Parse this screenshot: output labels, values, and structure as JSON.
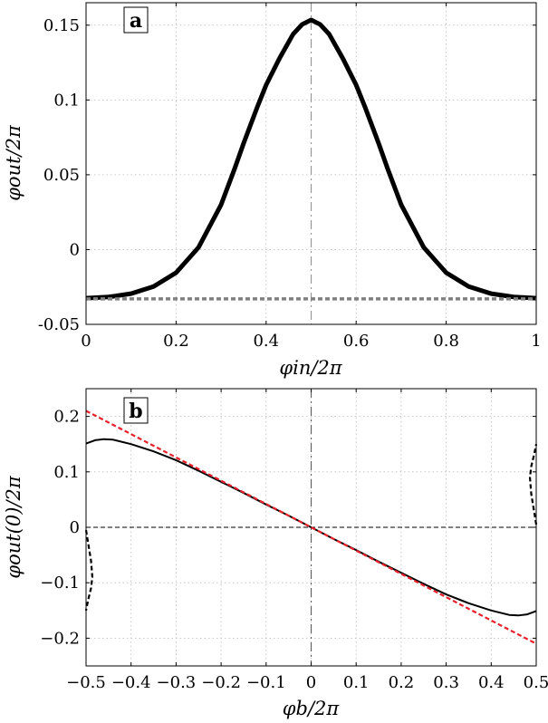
{
  "chart_data": [
    {
      "type": "line",
      "panel_label": "a",
      "xlabel": "φin/2π",
      "ylabel": "φout/2π",
      "xlim": [
        0,
        1
      ],
      "ylim": [
        -0.05,
        0.17
      ],
      "xticks": [
        0,
        0.2,
        0.4,
        0.6,
        0.8,
        1
      ],
      "xtick_labels": [
        "0",
        "0.2",
        "0.4",
        "0.6",
        "0.8",
        "1"
      ],
      "yticks": [
        -0.05,
        0,
        0.05,
        0.1,
        0.15
      ],
      "ytick_labels": [
        "-0.05",
        "0",
        "0.05",
        "0.1",
        "0.15"
      ],
      "grid": true,
      "series": [
        {
          "style": "solid-thick",
          "color": "#000000",
          "x": [
            0,
            0.05,
            0.1,
            0.15,
            0.2,
            0.25,
            0.3,
            0.33,
            0.35,
            0.38,
            0.4,
            0.43,
            0.46,
            0.48,
            0.5,
            0.52,
            0.54,
            0.57,
            0.6,
            0.62,
            0.65,
            0.67,
            0.7,
            0.75,
            0.8,
            0.85,
            0.9,
            0.95,
            1
          ],
          "y": [
            -0.0325,
            -0.0317,
            -0.0295,
            -0.0247,
            -0.0155,
            0.0015,
            0.03,
            0.054,
            0.071,
            0.095,
            0.11,
            0.128,
            0.144,
            0.1505,
            0.1535,
            0.1505,
            0.144,
            0.128,
            0.11,
            0.095,
            0.071,
            0.054,
            0.03,
            0.0015,
            -0.0155,
            -0.0247,
            -0.0295,
            -0.0317,
            -0.0325
          ]
        },
        {
          "style": "dashed-gray",
          "color": "#808080",
          "x": [
            0,
            1
          ],
          "y": [
            -0.033,
            -0.033
          ]
        }
      ],
      "reference_lines": [
        {
          "orientation": "vertical",
          "value": 0.5,
          "color": "#909090"
        }
      ]
    },
    {
      "type": "line",
      "panel_label": "b",
      "xlabel": "φb/2π",
      "ylabel": "φout(0)/2π",
      "xlim": [
        -0.5,
        0.5
      ],
      "ylim": [
        -0.25,
        0.25
      ],
      "xticks": [
        -0.5,
        -0.4,
        -0.3,
        -0.2,
        -0.1,
        0,
        0.1,
        0.2,
        0.3,
        0.4,
        0.5
      ],
      "xtick_labels": [
        "−0.5",
        "−0.4",
        "−0.3",
        "−0.2",
        "−0.1",
        "0",
        "0.1",
        "0.2",
        "0.3",
        "0.4",
        "0.5"
      ],
      "yticks": [
        -0.2,
        -0.1,
        0,
        0.1,
        0.2
      ],
      "ytick_labels": [
        "−0.2",
        "−0.1",
        "0",
        "0.1",
        "0.2"
      ],
      "grid": true,
      "series": [
        {
          "style": "solid",
          "color": "#000000",
          "x": [
            -0.5,
            -0.48,
            -0.46,
            -0.44,
            -0.4,
            -0.35,
            -0.3,
            -0.25,
            -0.2,
            -0.15,
            -0.1,
            -0.05,
            0,
            0.05,
            0.1,
            0.15,
            0.2,
            0.25,
            0.3,
            0.35,
            0.4,
            0.44,
            0.46,
            0.48,
            0.5
          ],
          "y": [
            0.151,
            0.157,
            0.159,
            0.158,
            0.15,
            0.137,
            0.121,
            0.102,
            0.082,
            0.062,
            0.041,
            0.021,
            0,
            -0.021,
            -0.041,
            -0.062,
            -0.082,
            -0.102,
            -0.121,
            -0.137,
            -0.15,
            -0.158,
            -0.159,
            -0.157,
            -0.151
          ]
        },
        {
          "style": "dashed-red",
          "color": "#e8202a",
          "x": [
            -0.5,
            0.5
          ],
          "y": [
            0.21,
            -0.21
          ]
        },
        {
          "style": "dashed-black-branch",
          "color": "#000000",
          "x": [
            -0.5,
            -0.495,
            -0.489,
            -0.486,
            -0.489,
            -0.495,
            -0.5
          ],
          "y": [
            -0.005,
            -0.03,
            -0.06,
            -0.09,
            -0.11,
            -0.13,
            -0.15
          ]
        },
        {
          "style": "dashed-black-branch",
          "color": "#000000",
          "x": [
            0.5,
            0.495,
            0.489,
            0.486,
            0.489,
            0.495,
            0.5
          ],
          "y": [
            0.005,
            0.03,
            0.06,
            0.09,
            0.11,
            0.13,
            0.15
          ]
        }
      ],
      "reference_lines": [
        {
          "orientation": "vertical",
          "value": 0,
          "color": "#555555"
        },
        {
          "orientation": "horizontal",
          "value": 0,
          "color": "#000000"
        }
      ]
    }
  ]
}
